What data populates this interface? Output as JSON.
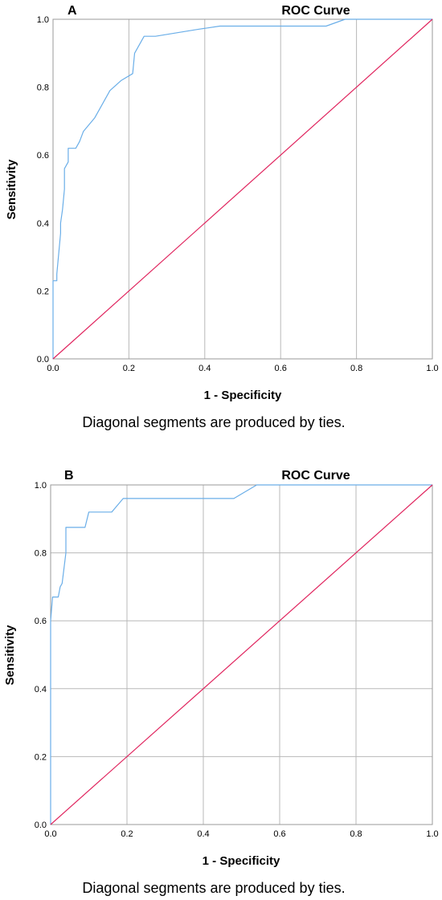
{
  "chart_data": [
    {
      "type": "line",
      "panel_label": "A",
      "title": "ROC Curve",
      "xlabel": "1 - Specificity",
      "ylabel": "Sensitivity",
      "xlim": [
        0,
        1
      ],
      "ylim": [
        0,
        1
      ],
      "x_ticks": [
        "0.0",
        "0.2",
        "0.4",
        "0.6",
        "0.8",
        "1.0"
      ],
      "y_ticks": [
        "0.0",
        "0.2",
        "0.4",
        "0.6",
        "0.8",
        "1.0"
      ],
      "grid": "vertical",
      "footnote": "Diagonal segments are produced by ties.",
      "series": [
        {
          "color": "#6aaee8",
          "x": [
            0,
            0,
            0.01,
            0.01,
            0.02,
            0.02,
            0.025,
            0.03,
            0.03,
            0.04,
            0.04,
            0.06,
            0.07,
            0.08,
            0.11,
            0.15,
            0.18,
            0.21,
            0.215,
            0.24,
            0.27,
            0.38,
            0.44,
            0.5,
            0.72,
            0.77,
            0.78,
            0.85,
            1.0
          ],
          "y": [
            0,
            0.23,
            0.23,
            0.25,
            0.37,
            0.4,
            0.44,
            0.5,
            0.56,
            0.58,
            0.62,
            0.62,
            0.64,
            0.67,
            0.71,
            0.79,
            0.82,
            0.84,
            0.9,
            0.95,
            0.95,
            0.97,
            0.98,
            0.98,
            0.98,
            1.0,
            1.0,
            1.0,
            1.0
          ]
        },
        {
          "color": "#e0245e",
          "x": [
            0,
            1
          ],
          "y": [
            0,
            1
          ]
        }
      ]
    },
    {
      "type": "line",
      "panel_label": "B",
      "title": "ROC Curve",
      "xlabel": "1 - Specificity",
      "ylabel": "Sensitivity",
      "xlim": [
        0,
        1
      ],
      "ylim": [
        0,
        1
      ],
      "x_ticks": [
        "0.0",
        "0.2",
        "0.4",
        "0.6",
        "0.8",
        "1.0"
      ],
      "y_ticks": [
        "0.0",
        "0.2",
        "0.4",
        "0.6",
        "0.8",
        "1.0"
      ],
      "grid": "both",
      "footnote": "Diagonal segments are produced by ties.",
      "series": [
        {
          "color": "#6aaee8",
          "x": [
            0,
            0,
            0.005,
            0.01,
            0.02,
            0.025,
            0.03,
            0.04,
            0.04,
            0.06,
            0.09,
            0.1,
            0.14,
            0.16,
            0.19,
            0.48,
            0.54,
            0.8,
            1.0
          ],
          "y": [
            0,
            0.6,
            0.67,
            0.67,
            0.67,
            0.7,
            0.71,
            0.8,
            0.875,
            0.875,
            0.875,
            0.92,
            0.92,
            0.92,
            0.96,
            0.96,
            1.0,
            1.0,
            1.0
          ]
        },
        {
          "color": "#e0245e",
          "x": [
            0,
            1
          ],
          "y": [
            0,
            1
          ]
        }
      ]
    }
  ]
}
